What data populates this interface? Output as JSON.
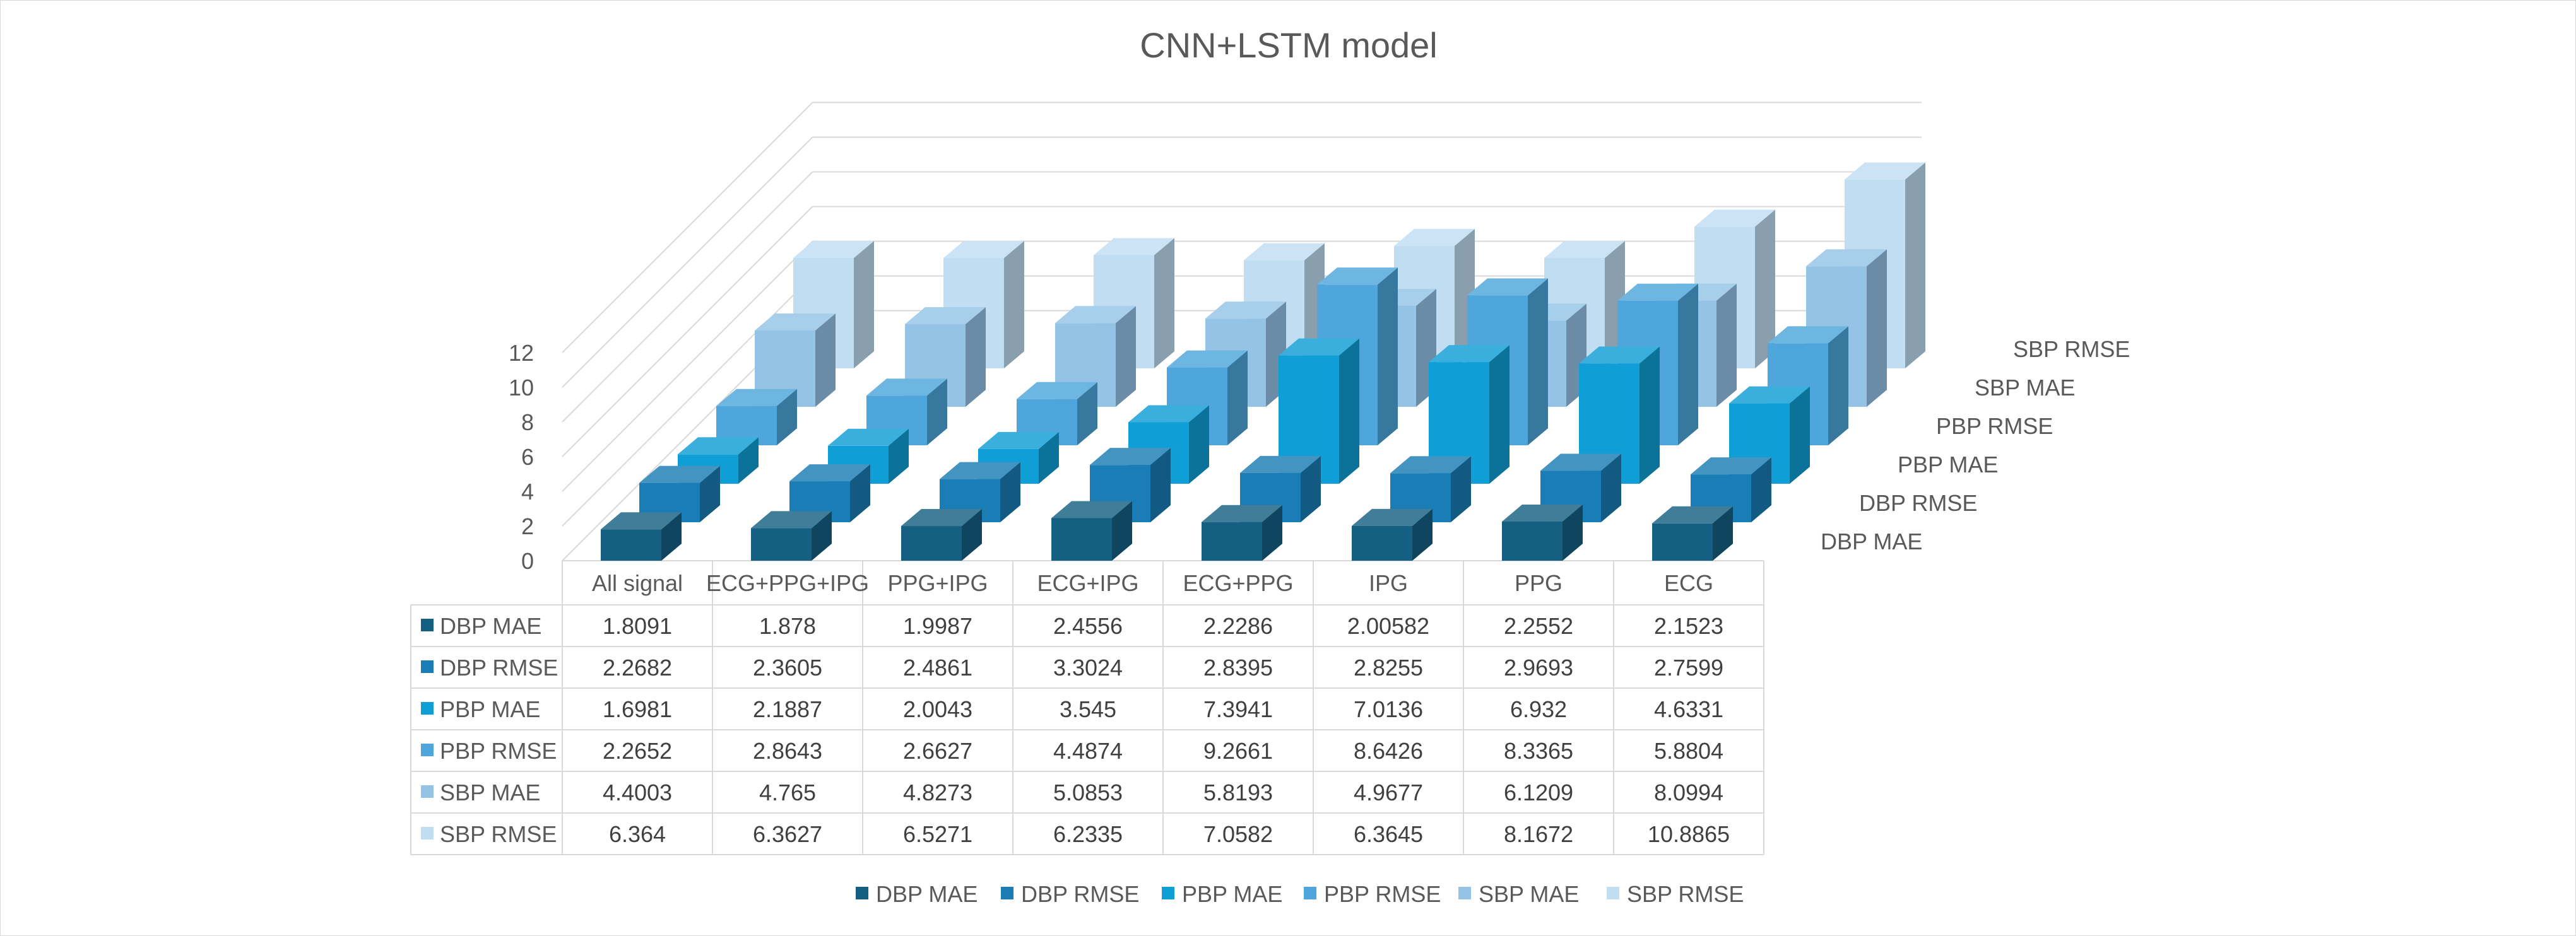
{
  "chart_data": {
    "type": "bar",
    "subtype": "3d-column-with-data-table",
    "title": "CNN+LSTM model",
    "categories": [
      "All signal",
      "ECG+PPG+IPG",
      "PPG+IPG",
      "ECG+IPG",
      "ECG+PPG",
      "IPG",
      "PPG",
      "ECG"
    ],
    "series": [
      {
        "name": "DBP MAE",
        "color": "#156082",
        "values": [
          1.8091,
          1.878,
          1.9987,
          2.4556,
          2.2286,
          2.00582,
          2.2552,
          2.1523
        ],
        "labels": [
          "1.8091",
          "1.878",
          "1.9987",
          "2.4556",
          "2.2286",
          "2.00582",
          "2.2552",
          "2.1523"
        ]
      },
      {
        "name": "DBP RMSE",
        "color": "#1B7DB5",
        "values": [
          2.2682,
          2.3605,
          2.4861,
          3.3024,
          2.8395,
          2.8255,
          2.9693,
          2.7599
        ],
        "labels": [
          "2.2682",
          "2.3605",
          "2.4861",
          "3.3024",
          "2.8395",
          "2.8255",
          "2.9693",
          "2.7599"
        ]
      },
      {
        "name": "PBP MAE",
        "color": "#0F9ED5",
        "values": [
          1.6981,
          2.1887,
          2.0043,
          3.545,
          7.3941,
          7.0136,
          6.932,
          4.6331
        ],
        "labels": [
          "1.6981",
          "2.1887",
          "2.0043",
          "3.545",
          "7.3941",
          "7.0136",
          "6.932",
          "4.6331"
        ]
      },
      {
        "name": "PBP RMSE",
        "color": "#4EA6DC",
        "values": [
          2.2652,
          2.8643,
          2.6627,
          4.4874,
          9.2661,
          8.6426,
          8.3365,
          5.8804
        ],
        "labels": [
          "2.2652",
          "2.8643",
          "2.6627",
          "4.4874",
          "9.2661",
          "8.6426",
          "8.3365",
          "5.8804"
        ]
      },
      {
        "name": "SBP MAE",
        "color": "#94C3E6",
        "values": [
          4.4003,
          4.765,
          4.8273,
          5.0853,
          5.8193,
          4.9677,
          6.1209,
          8.0994
        ],
        "labels": [
          "4.4003",
          "4.765",
          "4.8273",
          "5.0853",
          "5.8193",
          "4.9677",
          "6.1209",
          "8.0994"
        ]
      },
      {
        "name": "SBP RMSE",
        "color": "#C0DDF2",
        "values": [
          6.364,
          6.3627,
          6.5271,
          6.2335,
          7.0582,
          6.3645,
          8.1672,
          10.8865
        ],
        "labels": [
          "6.364",
          "6.3627",
          "6.5271",
          "6.2335",
          "7.0582",
          "6.3645",
          "8.1672",
          "10.8865"
        ]
      }
    ],
    "y_ticks": [
      "0",
      "2",
      "4",
      "6",
      "8",
      "10",
      "12"
    ],
    "ylim": [
      0,
      12
    ],
    "grid": true,
    "legend": "bottom",
    "data_table": true
  }
}
